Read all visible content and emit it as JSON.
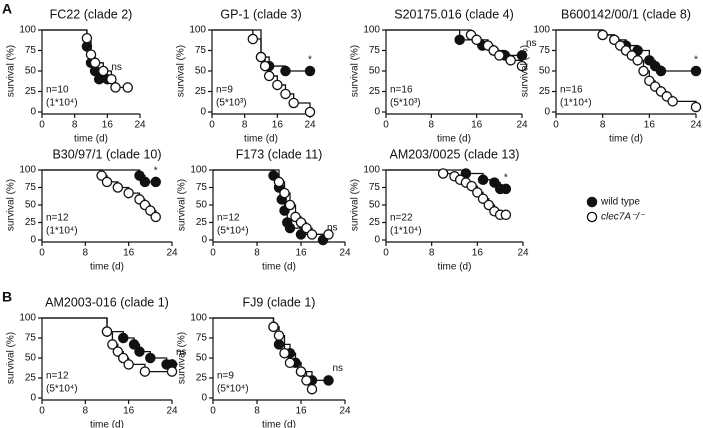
{
  "panel_labels": [
    "A",
    "B"
  ],
  "legend": [
    {
      "name": "wild type",
      "color": "#111111"
    },
    {
      "name": "clec7A⁻/⁻",
      "color": "#ffffff"
    }
  ],
  "chart_data": [
    {
      "type": "survival",
      "title": "FC22 (clade 2)",
      "xlabel": "time (d)",
      "ylabel": "survival (%)",
      "xlim": [
        0,
        24
      ],
      "xticks": [
        0,
        8,
        16,
        24
      ],
      "ylim": [
        0,
        100
      ],
      "yticks": [
        0,
        25,
        50,
        75,
        100
      ],
      "n": "n=10",
      "inoculum": "(1*10⁴)",
      "annotation": "ns",
      "series": [
        {
          "color": "#111111",
          "x": [
            11,
            12,
            13,
            14,
            16
          ],
          "values": [
            80,
            60,
            50,
            40,
            40
          ]
        },
        {
          "color": "#ffffff",
          "x": [
            11,
            12,
            13,
            15,
            17,
            18,
            21
          ],
          "values": [
            90,
            70,
            60,
            50,
            40,
            30,
            30
          ]
        }
      ]
    },
    {
      "type": "survival",
      "title": "GP-1 (clade 3)",
      "xlabel": "time (d)",
      "ylabel": "survival (%)",
      "xlim": [
        0,
        24
      ],
      "xticks": [
        0,
        8,
        16,
        24
      ],
      "ylim": [
        0,
        100
      ],
      "yticks": [
        0,
        25,
        50,
        75,
        100
      ],
      "n": "n=9",
      "inoculum": "(5*10³)",
      "annotation": "*",
      "series": [
        {
          "color": "#111111",
          "x": [
            12,
            14,
            18,
            24
          ],
          "values": [
            67,
            56,
            50,
            50
          ]
        },
        {
          "color": "#ffffff",
          "x": [
            10,
            12,
            13,
            14,
            16,
            18,
            20,
            24
          ],
          "values": [
            89,
            67,
            56,
            44,
            33,
            22,
            11,
            0
          ]
        }
      ]
    },
    {
      "type": "survival",
      "title": "S20175.016 (clade 4)",
      "xlabel": "time (d)",
      "ylabel": "survival (%)",
      "xlim": [
        0,
        24
      ],
      "xticks": [
        0,
        8,
        16,
        24
      ],
      "ylim": [
        0,
        100
      ],
      "yticks": [
        0,
        25,
        50,
        75,
        100
      ],
      "n": "n=16",
      "inoculum": "(5*10³)",
      "annotation": "ns",
      "series": [
        {
          "color": "#111111",
          "x": [
            13,
            17,
            19,
            21,
            24
          ],
          "values": [
            88,
            81,
            75,
            69,
            69
          ]
        },
        {
          "color": "#ffffff",
          "x": [
            15,
            16,
            18,
            19,
            20,
            22,
            24
          ],
          "values": [
            94,
            88,
            81,
            75,
            69,
            63,
            56
          ]
        }
      ]
    },
    {
      "type": "survival",
      "title": "B600142/00/1 (clade 8)",
      "xlabel": "time (d)",
      "ylabel": "survival (%)",
      "xlim": [
        0,
        24
      ],
      "xticks": [
        0,
        8,
        16,
        24
      ],
      "ylim": [
        0,
        100
      ],
      "yticks": [
        0,
        25,
        50,
        75,
        100
      ],
      "n": "n=16",
      "inoculum": "(1*10⁴)",
      "annotation": "*",
      "series": [
        {
          "color": "#111111",
          "x": [
            8,
            10,
            12,
            14,
            16,
            17,
            18,
            24
          ],
          "values": [
            94,
            88,
            81,
            75,
            63,
            56,
            50,
            50
          ]
        },
        {
          "color": "#ffffff",
          "x": [
            8,
            10,
            11,
            12,
            13,
            14,
            15,
            16,
            17,
            18,
            19,
            20,
            24
          ],
          "values": [
            94,
            88,
            81,
            75,
            69,
            63,
            50,
            38,
            31,
            25,
            19,
            13,
            6
          ]
        }
      ]
    },
    {
      "type": "survival",
      "title": "B30/97/1 (clade 10)",
      "xlabel": "time (d)",
      "ylabel": "survival (%)",
      "xlim": [
        0,
        24
      ],
      "xticks": [
        0,
        8,
        16,
        24
      ],
      "ylim": [
        0,
        100
      ],
      "yticks": [
        0,
        25,
        50,
        75,
        100
      ],
      "n": "n=12",
      "inoculum": "(1*10⁴)",
      "annotation": "*",
      "series": [
        {
          "color": "#111111",
          "x": [
            18,
            19,
            21
          ],
          "values": [
            92,
            83,
            83
          ]
        },
        {
          "color": "#ffffff",
          "x": [
            11,
            12,
            14,
            16,
            18,
            19,
            20,
            21
          ],
          "values": [
            92,
            83,
            75,
            67,
            58,
            50,
            42,
            33
          ]
        }
      ]
    },
    {
      "type": "survival",
      "title": "F173 (clade 11)",
      "xlabel": "time (d)",
      "ylabel": "survival (%)",
      "xlim": [
        0,
        24
      ],
      "xticks": [
        0,
        8,
        16,
        24
      ],
      "ylim": [
        0,
        100
      ],
      "yticks": [
        0,
        25,
        50,
        75,
        100
      ],
      "n": "n=12",
      "inoculum": "(5*10⁴)",
      "annotation": "ns",
      "series": [
        {
          "color": "#111111",
          "x": [
            11,
            12,
            12.5,
            13,
            13.5,
            14,
            16,
            20
          ],
          "values": [
            92,
            75,
            58,
            42,
            25,
            17,
            8,
            0
          ]
        },
        {
          "color": "#ffffff",
          "x": [
            12,
            13,
            14,
            15,
            16,
            17,
            18,
            21
          ],
          "values": [
            83,
            67,
            50,
            33,
            25,
            17,
            8,
            8
          ]
        }
      ]
    },
    {
      "type": "survival",
      "title": "AM203/0025 (clade 13)",
      "xlabel": "time (d)",
      "ylabel": "survival (%)",
      "xlim": [
        0,
        24
      ],
      "xticks": [
        0,
        8,
        16,
        24
      ],
      "ylim": [
        0,
        100
      ],
      "yticks": [
        0,
        25,
        50,
        75,
        100
      ],
      "n": "n=22",
      "inoculum": "(1*10⁴)",
      "annotation": "*",
      "series": [
        {
          "color": "#111111",
          "x": [
            14,
            17,
            19,
            20,
            21
          ],
          "values": [
            95,
            86,
            82,
            73,
            73
          ]
        },
        {
          "color": "#ffffff",
          "x": [
            10,
            12,
            13,
            14,
            15,
            16,
            17,
            18,
            19,
            20,
            21
          ],
          "values": [
            95,
            91,
            86,
            82,
            77,
            68,
            59,
            50,
            41,
            36,
            36
          ]
        }
      ]
    },
    {
      "type": "survival",
      "title": "AM2003-016 (clade 1)",
      "xlabel": "time (d)",
      "ylabel": "survival (%)",
      "xlim": [
        0,
        24
      ],
      "xticks": [
        0,
        8,
        16,
        24
      ],
      "ylim": [
        0,
        100
      ],
      "yticks": [
        0,
        25,
        50,
        75,
        100
      ],
      "n": "n=12",
      "inoculum": "(5*10⁴)",
      "annotation": "ns",
      "series": [
        {
          "color": "#111111",
          "x": [
            12,
            15,
            17,
            18,
            20,
            23,
            24
          ],
          "values": [
            83,
            75,
            67,
            58,
            50,
            42,
            42
          ]
        },
        {
          "color": "#ffffff",
          "x": [
            12,
            13,
            14,
            15,
            16,
            19,
            24
          ],
          "values": [
            83,
            67,
            58,
            50,
            42,
            33,
            33
          ]
        }
      ]
    },
    {
      "type": "survival",
      "title": "FJ9 (clade 1)",
      "xlabel": "time (d)",
      "ylabel": "survival (%)",
      "xlim": [
        0,
        24
      ],
      "xticks": [
        0,
        8,
        16,
        24
      ],
      "ylim": [
        0,
        100
      ],
      "yticks": [
        0,
        25,
        50,
        75,
        100
      ],
      "n": "n=9",
      "inoculum": "(5*10⁴)",
      "annotation": "ns",
      "series": [
        {
          "color": "#111111",
          "x": [
            11,
            12,
            14,
            15,
            16,
            18,
            21
          ],
          "values": [
            89,
            67,
            56,
            44,
            33,
            22,
            22
          ]
        },
        {
          "color": "#ffffff",
          "x": [
            11,
            12,
            13,
            14,
            16,
            17,
            18
          ],
          "values": [
            89,
            78,
            56,
            44,
            33,
            22,
            11
          ]
        }
      ]
    }
  ]
}
